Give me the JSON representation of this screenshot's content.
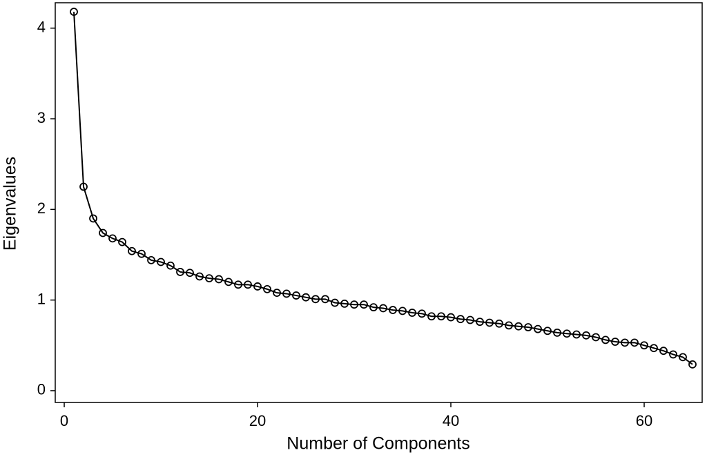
{
  "chart_data": {
    "type": "line",
    "xlabel": "Number of Components",
    "ylabel": "Eigenvalues",
    "x": [
      1,
      2,
      3,
      4,
      5,
      6,
      7,
      8,
      9,
      10,
      11,
      12,
      13,
      14,
      15,
      16,
      17,
      18,
      19,
      20,
      21,
      22,
      23,
      24,
      25,
      26,
      27,
      28,
      29,
      30,
      31,
      32,
      33,
      34,
      35,
      36,
      37,
      38,
      39,
      40,
      41,
      42,
      43,
      44,
      45,
      46,
      47,
      48,
      49,
      50,
      51,
      52,
      53,
      54,
      55,
      56,
      57,
      58,
      59,
      60,
      61,
      62,
      63,
      64,
      65
    ],
    "values": [
      4.18,
      2.25,
      1.9,
      1.74,
      1.68,
      1.64,
      1.54,
      1.51,
      1.44,
      1.42,
      1.38,
      1.31,
      1.3,
      1.26,
      1.24,
      1.23,
      1.2,
      1.17,
      1.17,
      1.15,
      1.12,
      1.08,
      1.07,
      1.05,
      1.03,
      1.01,
      1.01,
      0.97,
      0.96,
      0.95,
      0.95,
      0.92,
      0.91,
      0.89,
      0.88,
      0.86,
      0.85,
      0.82,
      0.82,
      0.81,
      0.79,
      0.78,
      0.76,
      0.75,
      0.74,
      0.72,
      0.71,
      0.7,
      0.68,
      0.66,
      0.64,
      0.63,
      0.62,
      0.61,
      0.59,
      0.56,
      0.54,
      0.53,
      0.53,
      0.5,
      0.47,
      0.44,
      0.4,
      0.37,
      0.29
    ],
    "color": "#000000",
    "xlim": [
      -0.93,
      66
    ],
    "ylim": [
      -0.13,
      4.28
    ],
    "xticks": [
      0,
      20,
      40,
      60
    ],
    "yticks": [
      0,
      1,
      2,
      3,
      4
    ],
    "grid": false
  }
}
